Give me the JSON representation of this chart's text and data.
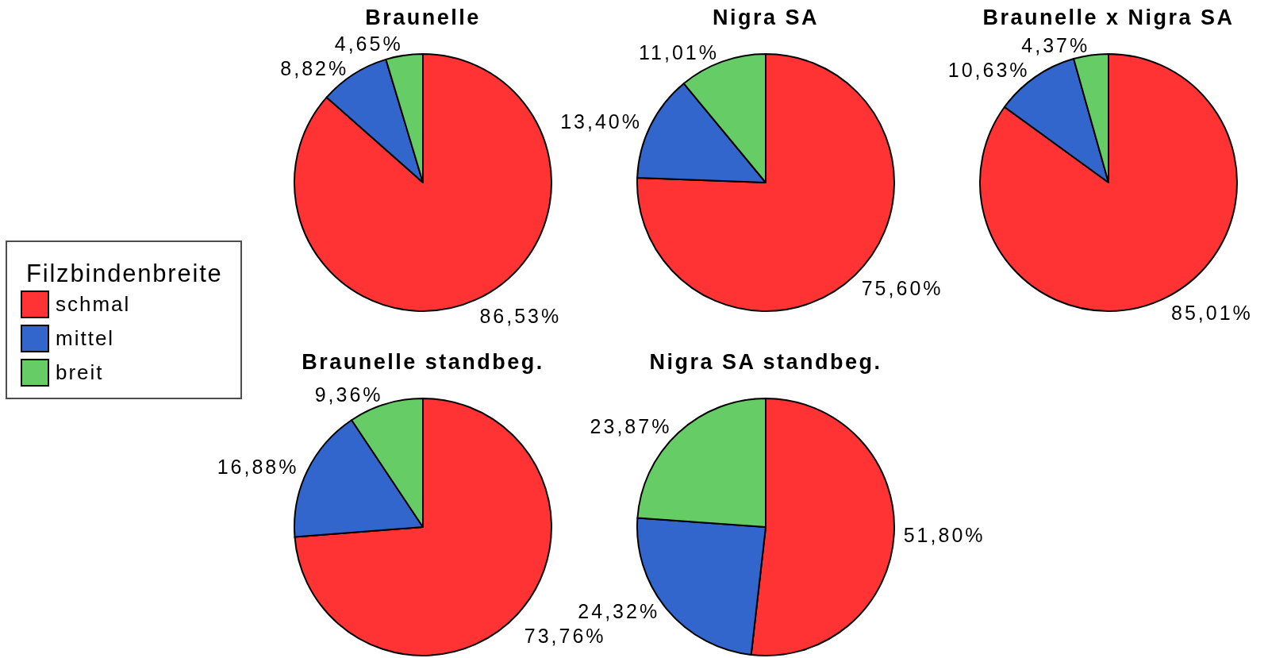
{
  "chart_data": [
    {
      "type": "pie",
      "title": "Braunelle",
      "categories": [
        "schmal",
        "mittel",
        "breit"
      ],
      "values": [
        86.53,
        8.82,
        4.65
      ],
      "colors": [
        "#ff3333",
        "#3366cc",
        "#66cc66"
      ],
      "value_labels": [
        "86,53%",
        "8,82%",
        "4,65%"
      ],
      "legend": "left",
      "legend_title": "Filzbindenbreite"
    },
    {
      "type": "pie",
      "title": "Nigra SA",
      "values": [
        75.6,
        13.4,
        11.01
      ],
      "colors": [
        "#ff3333",
        "#3366cc",
        "#66cc66"
      ],
      "value_labels": [
        "75,60%",
        "13,40%",
        "11,01%"
      ]
    },
    {
      "type": "pie",
      "title": "Braunelle x Nigra SA",
      "values": [
        85.01,
        10.63,
        4.37
      ],
      "colors": [
        "#ff3333",
        "#3366cc",
        "#66cc66"
      ],
      "value_labels": [
        "85,01%",
        "10,63%",
        "4,37%"
      ]
    },
    {
      "type": "pie",
      "title": "Braunelle standbeg.",
      "values": [
        73.76,
        16.88,
        9.36
      ],
      "colors": [
        "#ff3333",
        "#3366cc",
        "#66cc66"
      ],
      "value_labels": [
        "73,76%",
        "16,88%",
        "9,36%"
      ]
    },
    {
      "type": "pie",
      "title": "Nigra SA standbeg.",
      "values": [
        51.8,
        24.32,
        23.87
      ],
      "colors": [
        "#ff3333",
        "#3366cc",
        "#66cc66"
      ],
      "value_labels": [
        "51,80%",
        "24,32%",
        "23,87%"
      ]
    }
  ]
}
